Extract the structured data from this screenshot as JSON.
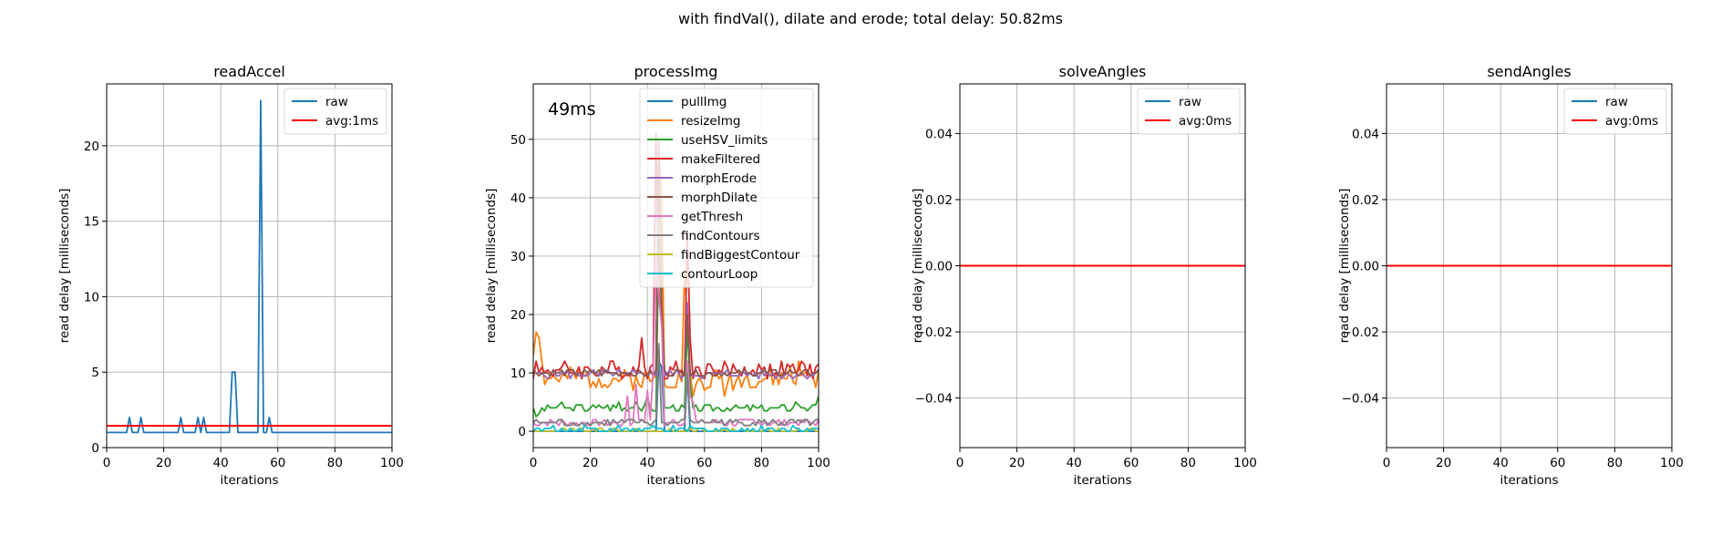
{
  "suptitle": "with findVal(), dilate and erode; total delay: 50.82ms",
  "colors": {
    "tab_blue": "#1f77b4",
    "tab_orange": "#ff7f0e",
    "tab_green": "#2ca02c",
    "tab_red": "#d62728",
    "tab_purple": "#9467bd",
    "tab_brown": "#8c564b",
    "tab_pink": "#e377c2",
    "tab_gray": "#7f7f7f",
    "tab_olive": "#bcbd22",
    "tab_cyan": "#17becf",
    "avg_red": "#ff0000",
    "grid": "#b0b0b0"
  },
  "chart_data": [
    {
      "type": "line",
      "title": "readAccel",
      "xlabel": "iterations",
      "ylabel": "read delay [milliseconds]",
      "xlim": [
        0,
        100
      ],
      "ylim": [
        0,
        24.1
      ],
      "xticks": [
        0,
        20,
        40,
        60,
        80,
        100
      ],
      "yticks": [
        0,
        5,
        10,
        15,
        20
      ],
      "ytick_labels": [
        "0",
        "5",
        "10",
        "15",
        "20"
      ],
      "grid": true,
      "legend_position": "top-right",
      "series": [
        {
          "name": "raw",
          "color": "#1f77b4",
          "kind": "spikes",
          "base": 1,
          "x_end": 100,
          "spikes": [
            [
              8,
              2
            ],
            [
              12,
              2
            ],
            [
              26,
              2
            ],
            [
              32,
              2
            ],
            [
              34,
              2
            ],
            [
              44,
              5
            ],
            [
              45,
              5
            ],
            [
              54,
              23
            ],
            [
              57,
              2
            ]
          ]
        },
        {
          "name": "avg:1ms",
          "color": "#ff0000",
          "kind": "hline",
          "y": 1.45
        }
      ]
    },
    {
      "type": "line",
      "title": "processImg",
      "xlabel": "iterations",
      "ylabel": "read delay [milliseconds]",
      "xlim": [
        0,
        100
      ],
      "ylim": [
        -2.8,
        59.5
      ],
      "xticks": [
        0,
        20,
        40,
        60,
        80,
        100
      ],
      "yticks": [
        0,
        10,
        20,
        30,
        40,
        50
      ],
      "ytick_labels": [
        "0",
        "10",
        "20",
        "30",
        "40",
        "50"
      ],
      "grid": true,
      "legend_position": "top-right",
      "annotation": "49ms",
      "series": [
        {
          "name": "pullImg",
          "color": "#1f77b4",
          "kind": "spikes",
          "base": 0,
          "x_end": 100,
          "spikes": [
            [
              44,
              12
            ],
            [
              45,
              11
            ],
            [
              54,
              10
            ]
          ]
        },
        {
          "name": "resizeImg",
          "color": "#ff7f0e",
          "kind": "noise",
          "base": 9,
          "amp": 1.8,
          "seed": 2,
          "x_end": 100,
          "points": [
            [
              0,
              13
            ],
            [
              1,
              17
            ],
            [
              2,
              16
            ],
            [
              3,
              12
            ],
            [
              56,
              6
            ],
            [
              60,
              7
            ],
            [
              67,
              6
            ],
            [
              90,
              11
            ],
            [
              93,
              12
            ],
            [
              96,
              10
            ]
          ],
          "spikes": [
            [
              44,
              48
            ],
            [
              45,
              40
            ],
            [
              53,
              27
            ],
            [
              54,
              20
            ]
          ]
        },
        {
          "name": "useHSV_limits",
          "color": "#2ca02c",
          "kind": "noise",
          "base": 4,
          "amp": 0.6,
          "seed": 3,
          "x_end": 100,
          "points": [
            [
              0,
              4
            ],
            [
              1,
              2.5
            ],
            [
              2,
              3
            ],
            [
              10,
              5
            ],
            [
              30,
              5
            ],
            [
              36,
              5
            ],
            [
              40,
              6
            ],
            [
              56,
              4
            ],
            [
              92,
              5
            ],
            [
              94,
              4
            ],
            [
              97,
              4
            ],
            [
              100,
              6
            ]
          ],
          "spikes": [
            [
              44,
              33
            ],
            [
              45,
              20
            ],
            [
              54,
              18
            ],
            [
              55,
              8
            ]
          ]
        },
        {
          "name": "makeFiltered",
          "color": "#d62728",
          "kind": "noise",
          "base": 10.5,
          "amp": 1.5,
          "seed": 4,
          "x_end": 100,
          "points": [
            [
              38,
              16
            ],
            [
              39,
              11
            ],
            [
              0,
              9
            ],
            [
              1,
              12
            ],
            [
              2,
              10
            ]
          ],
          "spikes": [
            [
              43,
              51
            ],
            [
              44,
              24
            ],
            [
              45,
              19
            ],
            [
              54,
              34
            ],
            [
              55,
              16
            ]
          ]
        },
        {
          "name": "morphErode",
          "color": "#9467bd",
          "kind": "noise",
          "base": 9.8,
          "amp": 0.7,
          "seed": 5,
          "x_end": 100,
          "spikes": [
            [
              44,
              50
            ],
            [
              45,
              20
            ],
            [
              54,
              22
            ]
          ]
        },
        {
          "name": "morphDilate",
          "color": "#8c564b",
          "kind": "noise",
          "base": 10,
          "amp": 0.6,
          "seed": 6,
          "x_end": 100,
          "spikes": [
            [
              44,
              49
            ],
            [
              45,
              21
            ],
            [
              54,
              20
            ]
          ]
        },
        {
          "name": "getThresh",
          "color": "#e377c2",
          "kind": "noise",
          "base": 1.5,
          "amp": 0.6,
          "seed": 7,
          "x_end": 100,
          "points": [
            [
              33,
              6
            ],
            [
              34,
              1
            ],
            [
              36,
              8
            ],
            [
              37,
              2
            ],
            [
              40,
              7
            ],
            [
              41,
              2
            ],
            [
              42,
              10
            ],
            [
              56,
              5
            ],
            [
              57,
              2
            ]
          ],
          "spikes": [
            [
              43,
              30
            ],
            [
              44,
              23
            ],
            [
              45,
              18
            ],
            [
              54,
              12
            ],
            [
              55,
              6
            ]
          ]
        },
        {
          "name": "findContours",
          "color": "#7f7f7f",
          "kind": "noise",
          "base": 1.5,
          "amp": 0.5,
          "seed": 8,
          "x_end": 100,
          "spikes": [
            [
              44,
              15
            ],
            [
              54,
              10
            ]
          ]
        },
        {
          "name": "findBiggestContour",
          "color": "#bcbd22",
          "kind": "noise",
          "base": 0.2,
          "amp": 0.1,
          "seed": 9,
          "x_end": 100,
          "spikes": []
        },
        {
          "name": "contourLoop",
          "color": "#17becf",
          "kind": "noise",
          "base": 0.3,
          "amp": 0.5,
          "seed": 10,
          "x_end": 100,
          "points": [
            [
              18,
              1
            ],
            [
              30,
              1
            ],
            [
              55,
              1
            ],
            [
              80,
              1
            ],
            [
              91,
              1
            ]
          ],
          "spikes": []
        }
      ]
    },
    {
      "type": "line",
      "title": "solveAngles",
      "xlabel": "iterations",
      "ylabel": "read delay [milliseconds]",
      "xlim": [
        0,
        100
      ],
      "ylim": [
        -0.055,
        0.055
      ],
      "xticks": [
        0,
        20,
        40,
        60,
        80,
        100
      ],
      "yticks": [
        -0.04,
        -0.02,
        0,
        0.02,
        0.04
      ],
      "ytick_labels": [
        "−0.04",
        "−0.02",
        "0.00",
        "0.02",
        "0.04"
      ],
      "grid": true,
      "legend_position": "top-right",
      "series": [
        {
          "name": "raw",
          "color": "#1f77b4",
          "kind": "hline",
          "y": 0
        },
        {
          "name": "avg:0ms",
          "color": "#ff0000",
          "kind": "hline",
          "y": 0
        }
      ]
    },
    {
      "type": "line",
      "title": "sendAngles",
      "xlabel": "iterations",
      "ylabel": "read delay [milliseconds]",
      "xlim": [
        0,
        100
      ],
      "ylim": [
        -0.055,
        0.055
      ],
      "xticks": [
        0,
        20,
        40,
        60,
        80,
        100
      ],
      "yticks": [
        -0.04,
        -0.02,
        0,
        0.02,
        0.04
      ],
      "ytick_labels": [
        "−0.04",
        "−0.02",
        "0.00",
        "0.02",
        "0.04"
      ],
      "grid": true,
      "legend_position": "top-right",
      "series": [
        {
          "name": "raw",
          "color": "#1f77b4",
          "kind": "hline",
          "y": 0
        },
        {
          "name": "avg:0ms",
          "color": "#ff0000",
          "kind": "hline",
          "y": 0
        }
      ]
    }
  ]
}
